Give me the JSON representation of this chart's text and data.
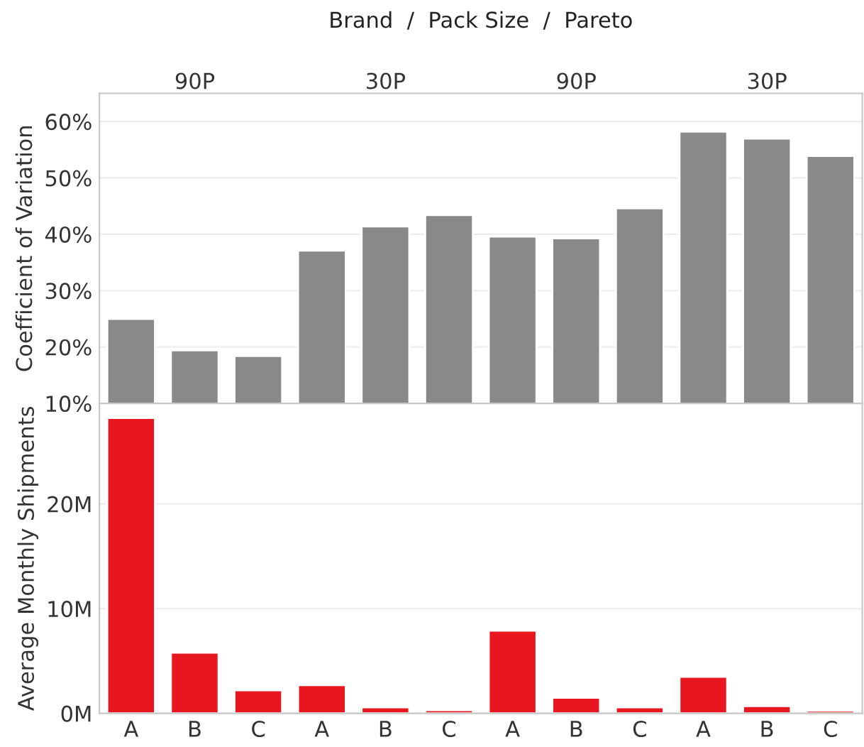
{
  "chart_data": [
    {
      "type": "bar",
      "title": "Brand  /  Pack Size  /  Pareto",
      "annotations": [
        "90P",
        "30P",
        "90P",
        "30P"
      ],
      "ylabel": "Coefficient of Variation",
      "categories": [
        null,
        null,
        null,
        null,
        null,
        null,
        null,
        null,
        null,
        null,
        null,
        null
      ],
      "series": [
        {
          "color": "#898989",
          "values": [
            25.0,
            19.4,
            18.4,
            37.1,
            41.4,
            43.4,
            39.6,
            39.3,
            44.6,
            58.2,
            57.0,
            53.9
          ]
        }
      ],
      "ylim": [
        10,
        65
      ],
      "yticks": [
        {
          "value": 10,
          "label": "10%"
        },
        {
          "value": 20,
          "label": "20%"
        },
        {
          "value": 30,
          "label": "30%"
        },
        {
          "value": 40,
          "label": "40%"
        },
        {
          "value": 50,
          "label": "50%"
        },
        {
          "value": 60,
          "label": "60%"
        }
      ],
      "grid": "y",
      "legend": false,
      "tick_labels": "y"
    },
    {
      "type": "bar",
      "ylabel": "Average Monthly Shipments",
      "categories": [
        "A",
        "B",
        "C",
        "A",
        "B",
        "C",
        "A",
        "B",
        "C",
        "A",
        "B",
        "C"
      ],
      "series": [
        {
          "color": "#e8171f",
          "values": [
            28.2,
            5.8,
            2.2,
            2.7,
            0.58,
            0.3,
            7.9,
            1.5,
            0.58,
            3.5,
            0.7,
            0.26
          ]
        }
      ],
      "ylim": [
        0,
        29.6
      ],
      "yticks": [
        {
          "value": 0,
          "label": "0M"
        },
        {
          "value": 10,
          "label": "10M"
        },
        {
          "value": 20,
          "label": "20M"
        }
      ],
      "grid": "y",
      "legend": false
    }
  ]
}
